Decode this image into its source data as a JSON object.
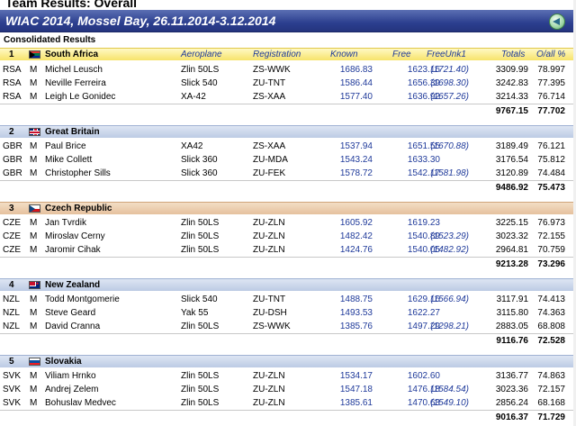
{
  "page": {
    "title": "Team Results: Overall",
    "event_title": "WIAC 2014, Mossel Bay, 26.11.2014-3.12.2014",
    "section": "Consolidated Results",
    "back_icon": "back-arrow-icon"
  },
  "columns": {
    "aeroplane": "Aeroplane",
    "registration": "Registration",
    "known": "Known",
    "free": "Free",
    "freeunk1": "FreeUnk1",
    "totals": "Totals",
    "overall_pct": "O/all %"
  },
  "teams": [
    {
      "rank": "1",
      "name": "South Africa",
      "flag": "za-flag-icon",
      "style": "gold",
      "members": [
        {
          "country": "RSA",
          "sex": "M",
          "name": "Michel Leusch",
          "plane": "Zlin 50LS",
          "reg": "ZS-WWK",
          "known": "1686.83",
          "free": "1623.16",
          "unk": "(1721.40)",
          "total": "3309.99",
          "pct": "78.997"
        },
        {
          "country": "RSA",
          "sex": "M",
          "name": "Neville Ferreira",
          "plane": "Slick 540",
          "reg": "ZU-TNT",
          "known": "1586.44",
          "free": "1656.39",
          "unk": "(1698.30)",
          "total": "3242.83",
          "pct": "77.395"
        },
        {
          "country": "RSA",
          "sex": "M",
          "name": "Leigh Le Gonidec",
          "plane": "XA-42",
          "reg": "ZS-XAA",
          "known": "1577.40",
          "free": "1636.92",
          "unk": "(1657.26)",
          "total": "3214.33",
          "pct": "76.714"
        }
      ],
      "team_total": "9767.15",
      "team_pct": "77.702"
    },
    {
      "rank": "2",
      "name": "Great Britain",
      "flag": "gb-flag-icon",
      "style": "blue",
      "members": [
        {
          "country": "GBR",
          "sex": "M",
          "name": "Paul Brice",
          "plane": "XA42",
          "reg": "ZS-XAA",
          "known": "1537.94",
          "free": "1651.55",
          "unk": "(1670.88)",
          "total": "3189.49",
          "pct": "76.121"
        },
        {
          "country": "GBR",
          "sex": "M",
          "name": "Mike Collett",
          "plane": "Slick 360",
          "reg": "ZU-MDA",
          "known": "1543.24",
          "free": "1633.30",
          "unk": "",
          "total": "3176.54",
          "pct": "75.812"
        },
        {
          "country": "GBR",
          "sex": "M",
          "name": "Christopher Sills",
          "plane": "Slick 360",
          "reg": "ZU-FEK",
          "known": "1578.72",
          "free": "1542.17",
          "unk": "(1581.98)",
          "total": "3120.89",
          "pct": "74.484"
        }
      ],
      "team_total": "9486.92",
      "team_pct": "75.473"
    },
    {
      "rank": "3",
      "name": "Czech Republic",
      "flag": "cz-flag-icon",
      "style": "tan",
      "members": [
        {
          "country": "CZE",
          "sex": "M",
          "name": "Jan Tvrdik",
          "plane": "Zlin 50LS",
          "reg": "ZU-ZLN",
          "known": "1605.92",
          "free": "1619.23",
          "unk": "",
          "total": "3225.15",
          "pct": "76.973"
        },
        {
          "country": "CZE",
          "sex": "M",
          "name": "Miroslav Cerny",
          "plane": "Zlin 50LS",
          "reg": "ZU-ZLN",
          "known": "1482.42",
          "free": "1540.89",
          "unk": "(1523.29)",
          "total": "3023.32",
          "pct": "72.155"
        },
        {
          "country": "CZE",
          "sex": "M",
          "name": "Jaromir Cihak",
          "plane": "Zlin 50LS",
          "reg": "ZU-ZLN",
          "known": "1424.76",
          "free": "1540.05",
          "unk": "(1482.92)",
          "total": "2964.81",
          "pct": "70.759"
        }
      ],
      "team_total": "9213.28",
      "team_pct": "73.296"
    },
    {
      "rank": "4",
      "name": "New Zealand",
      "flag": "nz-flag-icon",
      "style": "blue",
      "members": [
        {
          "country": "NZL",
          "sex": "M",
          "name": "Todd Montgomerie",
          "plane": "Slick 540",
          "reg": "ZU-TNT",
          "known": "1488.75",
          "free": "1629.16",
          "unk": "(1566.94)",
          "total": "3117.91",
          "pct": "74.413"
        },
        {
          "country": "NZL",
          "sex": "M",
          "name": "Steve Geard",
          "plane": "Yak 55",
          "reg": "ZU-DSH",
          "known": "1493.53",
          "free": "1622.27",
          "unk": "",
          "total": "3115.80",
          "pct": "74.363"
        },
        {
          "country": "NZL",
          "sex": "M",
          "name": "David Cranna",
          "plane": "Zlin 50LS",
          "reg": "ZS-WWK",
          "known": "1385.76",
          "free": "1497.29",
          "unk": "(1298.21)",
          "total": "2883.05",
          "pct": "68.808"
        }
      ],
      "team_total": "9116.76",
      "team_pct": "72.528"
    },
    {
      "rank": "5",
      "name": "Slovakia",
      "flag": "sk-flag-icon",
      "style": "blue",
      "members": [
        {
          "country": "SVK",
          "sex": "M",
          "name": "Viliam Hrnko",
          "plane": "Zlin 50LS",
          "reg": "ZU-ZLN",
          "known": "1534.17",
          "free": "1602.60",
          "unk": "",
          "total": "3136.77",
          "pct": "74.863"
        },
        {
          "country": "SVK",
          "sex": "M",
          "name": "Andrej Zelem",
          "plane": "Zlin 50LS",
          "reg": "ZU-ZLN",
          "known": "1547.18",
          "free": "1476.18",
          "unk": "(1584.54)",
          "total": "3023.36",
          "pct": "72.157"
        },
        {
          "country": "SVK",
          "sex": "M",
          "name": "Bohuslav Medvec",
          "plane": "Zlin 50LS",
          "reg": "ZU-ZLN",
          "known": "1385.61",
          "free": "1470.63",
          "unk": "(1549.10)",
          "total": "2856.24",
          "pct": "68.168"
        }
      ],
      "team_total": "9016.37",
      "team_pct": "71.729"
    }
  ]
}
